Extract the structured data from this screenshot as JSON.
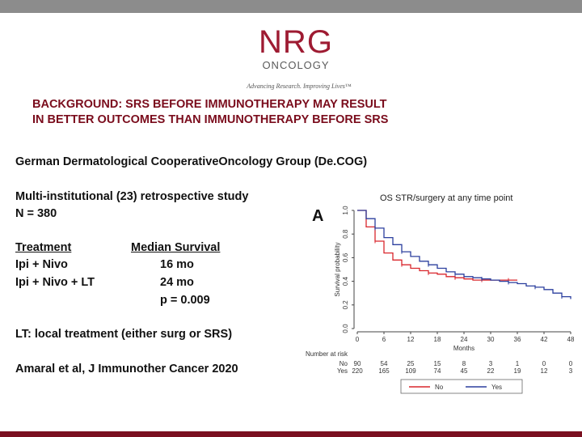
{
  "logo": {
    "brand": "NRG",
    "sub": "ONCOLOGY",
    "tagline": "Advancing Research. Improving Lives™"
  },
  "slide": {
    "title_line1": "BACKGROUND:  SRS BEFORE IMMUNOTHERAPY MAY RESULT",
    "title_line2": "IN BETTER OUTCOMES THAN IMMUNOTHERAPY BEFORE SRS",
    "group": "German Dermatological CooperativeOncology Group (De.COG)",
    "study": "Multi-institutional (23) retrospective study",
    "n": "N = 380",
    "table": {
      "col1_header": "Treatment",
      "col2_header": "Median Survival",
      "rows": [
        {
          "treatment": "Ipi + Nivo",
          "median": "16 mo"
        },
        {
          "treatment": "Ipi + Nivo + LT",
          "median": "24 mo"
        }
      ],
      "p_value": "p = 0.009"
    },
    "lt_note": "LT: local treatment (either surg or SRS)",
    "citation": "Amaral et al, J Immunother Cancer 2020"
  },
  "figure": {
    "panel_label": "A",
    "title": "OS STR/surgery at any time point",
    "ylabel": "Survival probability",
    "xlabel": "Months",
    "x_ticks": [
      "0",
      "6",
      "12",
      "18",
      "24",
      "30",
      "36",
      "42",
      "48"
    ],
    "y_ticks": [
      "0.0",
      "0.2",
      "0.4",
      "0.6",
      "0.8",
      "1.0"
    ],
    "risk_title": "Number at risk",
    "risk_rows": [
      {
        "label": "No",
        "values": [
          "90",
          "54",
          "25",
          "15",
          "8",
          "3",
          "1",
          "0",
          "0"
        ]
      },
      {
        "label": "Yes",
        "values": [
          "220",
          "165",
          "109",
          "74",
          "45",
          "22",
          "19",
          "12",
          "3"
        ]
      }
    ],
    "legend": [
      "No",
      "Yes"
    ]
  },
  "chart_data": {
    "type": "line",
    "title": "OS STR/surgery at any time point",
    "xlabel": "Months",
    "ylabel": "Survival probability",
    "xlim": [
      0,
      48
    ],
    "ylim": [
      0,
      1
    ],
    "legend_position": "bottom",
    "series": [
      {
        "name": "No",
        "color": "#d9262c",
        "x": [
          0,
          2,
          4,
          6,
          8,
          10,
          12,
          14,
          16,
          18,
          20,
          22,
          24,
          26,
          28,
          30,
          32,
          34,
          36
        ],
        "y": [
          1.0,
          0.86,
          0.74,
          0.64,
          0.58,
          0.54,
          0.51,
          0.49,
          0.47,
          0.46,
          0.44,
          0.43,
          0.42,
          0.41,
          0.41,
          0.41,
          0.41,
          0.41,
          0.41
        ]
      },
      {
        "name": "Yes",
        "color": "#2b3f9e",
        "x": [
          0,
          2,
          4,
          6,
          8,
          10,
          12,
          14,
          16,
          18,
          20,
          22,
          24,
          26,
          28,
          30,
          32,
          34,
          36,
          38,
          40,
          42,
          44,
          46,
          48
        ],
        "y": [
          1.0,
          0.93,
          0.85,
          0.77,
          0.71,
          0.65,
          0.61,
          0.57,
          0.54,
          0.51,
          0.48,
          0.46,
          0.44,
          0.43,
          0.42,
          0.41,
          0.4,
          0.39,
          0.38,
          0.36,
          0.35,
          0.33,
          0.3,
          0.27,
          0.25
        ]
      }
    ]
  }
}
